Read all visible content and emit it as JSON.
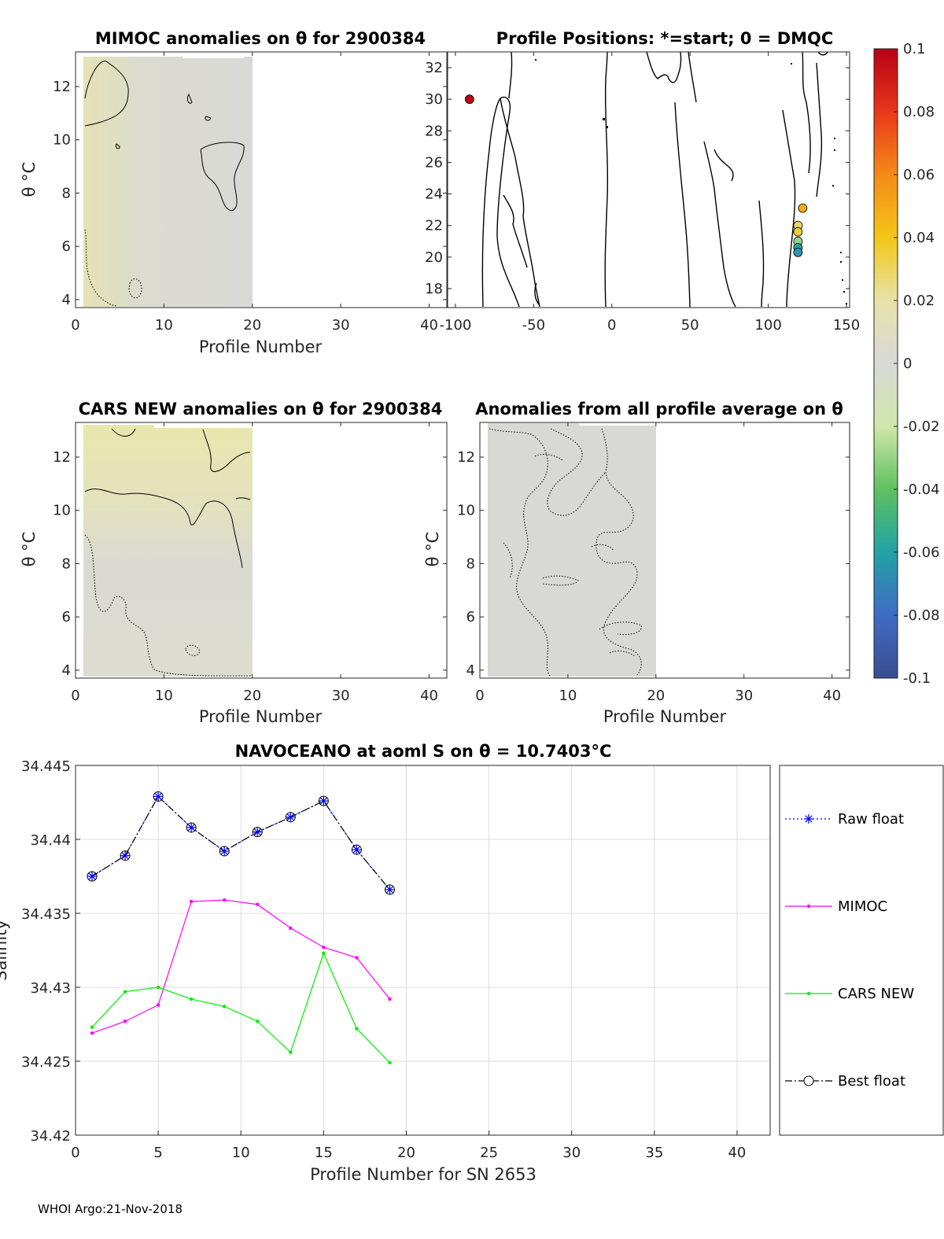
{
  "figure": {
    "footer": "WHOI Argo:21-Nov-2018"
  },
  "chart_data": [
    {
      "type": "heatmap",
      "title": "MIMOC anomalies on θ  for 2900384",
      "xlabel": "Profile Number",
      "ylabel": "θ °C",
      "xlim": [
        0,
        42
      ],
      "ylim": [
        3.7,
        13.3
      ],
      "xticks": [
        0,
        10,
        20,
        30,
        40
      ],
      "yticks": [
        4,
        6,
        8,
        10,
        12
      ],
      "data_extent_x": [
        1,
        20
      ],
      "data_extent_y": [
        3.7,
        13.2
      ]
    },
    {
      "type": "scatter",
      "title": "Profile Positions: *=start; 0 = DMQC",
      "xlabel": "",
      "ylabel": "",
      "xlim": [
        -105,
        152
      ],
      "ylim": [
        16.8,
        33
      ],
      "xticks": [
        -100,
        -50,
        0,
        50,
        100,
        150
      ],
      "yticks": [
        18,
        20,
        22,
        24,
        26,
        28,
        30,
        32
      ],
      "points": [
        {
          "lon": -91,
          "lat": 30.0,
          "c": 0.1
        },
        {
          "lon": 122,
          "lat": 23.1,
          "c": 0.05
        },
        {
          "lon": 119,
          "lat": 22.0,
          "c": 0.03
        },
        {
          "lon": 119,
          "lat": 21.6,
          "c": 0.035
        },
        {
          "lon": 119,
          "lat": 21.0,
          "c": -0.03
        },
        {
          "lon": 119,
          "lat": 20.6,
          "c": -0.06
        },
        {
          "lon": 119,
          "lat": 20.3,
          "c": -0.065
        }
      ]
    },
    {
      "type": "heatmap",
      "title": "CARS NEW anomalies on θ for 2900384",
      "xlabel": "Profile Number",
      "ylabel": "θ °C",
      "xlim": [
        0,
        42
      ],
      "ylim": [
        3.7,
        13.3
      ],
      "xticks": [
        0,
        10,
        20,
        30,
        40
      ],
      "yticks": [
        4,
        6,
        8,
        10,
        12
      ],
      "data_extent_x": [
        1,
        20
      ],
      "data_extent_y": [
        3.7,
        13.2
      ]
    },
    {
      "type": "heatmap",
      "title": "Anomalies from all profile average on θ",
      "xlabel": "Profile Number",
      "ylabel": "θ °C",
      "xlim": [
        0,
        42
      ],
      "ylim": [
        3.7,
        13.3
      ],
      "xticks": [
        0,
        10,
        20,
        30,
        40
      ],
      "yticks": [
        4,
        6,
        8,
        10,
        12
      ],
      "data_extent_x": [
        1,
        20
      ],
      "data_extent_y": [
        3.7,
        13.3
      ]
    },
    {
      "type": "colorbar",
      "range": [
        -0.1,
        0.1
      ],
      "ticks": [
        "0.1",
        "0.08",
        "0.06",
        "0.04",
        "0.02",
        "0",
        "-0.02",
        "-0.04",
        "-0.06",
        "-0.08",
        "-0.1"
      ],
      "tick_values": [
        0.1,
        0.08,
        0.06,
        0.04,
        0.02,
        0,
        -0.02,
        -0.04,
        -0.06,
        -0.08,
        -0.1
      ]
    },
    {
      "type": "line",
      "title": "NAVOCEANO at aoml S on θ = 10.7403°C",
      "xlabel": "Profile Number for SN 2653",
      "ylabel": "Salinity",
      "xlim": [
        0,
        42
      ],
      "ylim": [
        34.42,
        34.445
      ],
      "xticks": [
        0,
        5,
        10,
        15,
        20,
        25,
        30,
        35,
        40
      ],
      "yticks": [
        "34.42",
        "34.425",
        "34.43",
        "34.435",
        "34.44",
        "34.445"
      ],
      "ytick_values": [
        34.42,
        34.425,
        34.43,
        34.435,
        34.44,
        34.445
      ],
      "grid": true,
      "legend_position": "outside-right",
      "x": [
        1,
        3,
        5,
        7,
        9,
        11,
        13,
        15,
        17,
        19
      ],
      "series": [
        {
          "name": "Raw float",
          "color": "#0000ff",
          "values": [
            34.4375,
            34.4389,
            34.4429,
            34.4408,
            34.4392,
            34.4405,
            34.4415,
            34.4426,
            34.4393,
            34.4366
          ]
        },
        {
          "name": "MIMOC",
          "color": "#ff00ff",
          "values": [
            34.4269,
            34.4277,
            34.4288,
            34.4358,
            34.4359,
            34.4356,
            34.434,
            34.4327,
            34.432,
            34.4292
          ]
        },
        {
          "name": "CARS NEW",
          "color": "#00ee00",
          "values": [
            34.4273,
            34.4297,
            34.43,
            34.4292,
            34.4287,
            34.4277,
            34.4256,
            34.4323,
            34.4272,
            34.4249
          ]
        },
        {
          "name": "Best float",
          "color": "#000000",
          "values": [
            34.4375,
            34.4389,
            34.4429,
            34.4408,
            34.4392,
            34.4405,
            34.4415,
            34.4426,
            34.4393,
            34.4366
          ]
        }
      ]
    }
  ]
}
